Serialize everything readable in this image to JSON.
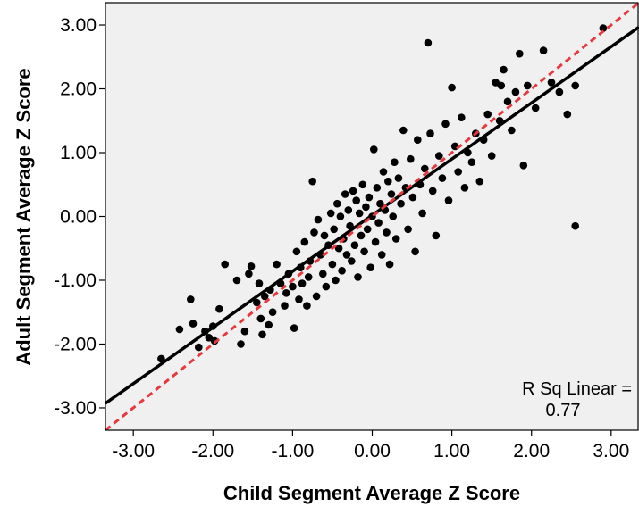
{
  "chart_data": {
    "type": "scatter",
    "title": "",
    "xlabel": "Child Segment Average Z Score",
    "ylabel": "Adult Segment Average Z Score",
    "xlim": [
      -3.35,
      3.35
    ],
    "ylim": [
      -3.35,
      3.35
    ],
    "x_ticks": [
      -3.0,
      -2.0,
      -1.0,
      0.0,
      1.0,
      2.0,
      3.0
    ],
    "y_ticks": [
      -3.0,
      -2.0,
      -1.0,
      0.0,
      1.0,
      2.0,
      3.0
    ],
    "x_tick_labels": [
      "-3.00",
      "-2.00",
      "-1.00",
      "0.00",
      "1.00",
      "2.00",
      "3.00"
    ],
    "y_tick_labels": [
      "-3.00",
      "-2.00",
      "-1.00",
      "0.00",
      "1.00",
      "2.00",
      "3.00"
    ],
    "grid": false,
    "annotation": {
      "line1": "R Sq Linear =",
      "line2": "0.77"
    },
    "fit_line": {
      "slope": 0.88,
      "intercept": 0.02,
      "color": "#000000"
    },
    "reference_line": {
      "slope": 1.0,
      "intercept": 0.0,
      "color": "#e8383d",
      "style": "dashed"
    },
    "plot_background": "#f0f0f0",
    "point_color": "#000000",
    "points": [
      [
        -2.65,
        -2.23
      ],
      [
        -2.42,
        -1.77
      ],
      [
        -2.28,
        -1.3
      ],
      [
        -2.25,
        -1.68
      ],
      [
        -2.18,
        -2.05
      ],
      [
        -2.1,
        -1.8
      ],
      [
        -2.05,
        -1.9
      ],
      [
        -2.0,
        -1.72
      ],
      [
        -1.98,
        -1.95
      ],
      [
        -1.92,
        -1.45
      ],
      [
        -1.85,
        -0.75
      ],
      [
        -1.7,
        -1.0
      ],
      [
        -1.65,
        -2.0
      ],
      [
        -1.6,
        -1.8
      ],
      [
        -1.55,
        -0.9
      ],
      [
        -1.52,
        -0.78
      ],
      [
        -1.45,
        -1.35
      ],
      [
        -1.42,
        -1.05
      ],
      [
        -1.4,
        -1.6
      ],
      [
        -1.38,
        -1.85
      ],
      [
        -1.35,
        -1.25
      ],
      [
        -1.3,
        -1.7
      ],
      [
        -1.28,
        -1.15
      ],
      [
        -1.25,
        -1.5
      ],
      [
        -1.2,
        -0.75
      ],
      [
        -1.15,
        -1.05
      ],
      [
        -1.1,
        -1.4
      ],
      [
        -1.08,
        -1.2
      ],
      [
        -1.05,
        -0.9
      ],
      [
        -1.0,
        -1.1
      ],
      [
        -0.98,
        -1.75
      ],
      [
        -0.95,
        -0.55
      ],
      [
        -0.92,
        -1.3
      ],
      [
        -0.9,
        -0.8
      ],
      [
        -0.88,
        -1.05
      ],
      [
        -0.85,
        -0.4
      ],
      [
        -0.82,
        -1.4
      ],
      [
        -0.8,
        -0.95
      ],
      [
        -0.78,
        -0.7
      ],
      [
        -0.75,
        0.55
      ],
      [
        -0.73,
        -0.25
      ],
      [
        -0.7,
        -1.25
      ],
      [
        -0.68,
        -0.05
      ],
      [
        -0.65,
        -0.6
      ],
      [
        -0.62,
        -0.9
      ],
      [
        -0.6,
        -0.3
      ],
      [
        -0.58,
        -1.1
      ],
      [
        -0.55,
        -0.45
      ],
      [
        -0.52,
        0.05
      ],
      [
        -0.5,
        -0.75
      ],
      [
        -0.48,
        -0.2
      ],
      [
        -0.46,
        -1.0
      ],
      [
        -0.44,
        0.2
      ],
      [
        -0.42,
        -0.5
      ],
      [
        -0.4,
        0.0
      ],
      [
        -0.38,
        -0.85
      ],
      [
        -0.36,
        -0.35
      ],
      [
        -0.34,
        0.35
      ],
      [
        -0.32,
        -0.6
      ],
      [
        -0.3,
        0.1
      ],
      [
        -0.28,
        -0.15
      ],
      [
        -0.26,
        -0.7
      ],
      [
        -0.24,
        0.4
      ],
      [
        -0.22,
        -0.45
      ],
      [
        -0.2,
        0.25
      ],
      [
        -0.18,
        -0.95
      ],
      [
        -0.16,
        0.05
      ],
      [
        -0.14,
        -0.3
      ],
      [
        -0.12,
        0.5
      ],
      [
        -0.1,
        -0.55
      ],
      [
        -0.08,
        0.15
      ],
      [
        -0.06,
        -0.2
      ],
      [
        -0.04,
        0.3
      ],
      [
        -0.02,
        -0.8
      ],
      [
        0.0,
        0.0
      ],
      [
        0.02,
        1.05
      ],
      [
        0.04,
        -0.4
      ],
      [
        0.06,
        0.45
      ],
      [
        0.08,
        -0.1
      ],
      [
        0.1,
        0.2
      ],
      [
        0.12,
        -0.6
      ],
      [
        0.14,
        0.7
      ],
      [
        0.16,
        0.1
      ],
      [
        0.18,
        -0.25
      ],
      [
        0.2,
        0.55
      ],
      [
        0.22,
        -0.75
      ],
      [
        0.24,
        0.35
      ],
      [
        0.26,
        0.0
      ],
      [
        0.28,
        0.85
      ],
      [
        0.3,
        -0.35
      ],
      [
        0.33,
        0.6
      ],
      [
        0.36,
        0.2
      ],
      [
        0.39,
        1.35
      ],
      [
        0.42,
        0.45
      ],
      [
        0.45,
        -0.2
      ],
      [
        0.48,
        0.9
      ],
      [
        0.51,
        0.3
      ],
      [
        0.54,
        -0.55
      ],
      [
        0.57,
        1.2
      ],
      [
        0.6,
        0.5
      ],
      [
        0.63,
        0.05
      ],
      [
        0.66,
        0.75
      ],
      [
        0.7,
        2.72
      ],
      [
        0.73,
        1.3
      ],
      [
        0.76,
        0.4
      ],
      [
        0.8,
        -0.3
      ],
      [
        0.84,
        0.95
      ],
      [
        0.88,
        0.6
      ],
      [
        0.92,
        1.45
      ],
      [
        0.96,
        0.25
      ],
      [
        1.0,
        2.02
      ],
      [
        1.04,
        1.1
      ],
      [
        1.08,
        0.7
      ],
      [
        1.12,
        1.55
      ],
      [
        1.16,
        0.45
      ],
      [
        1.2,
        1.0
      ],
      [
        1.25,
        0.85
      ],
      [
        1.3,
        1.3
      ],
      [
        1.35,
        0.55
      ],
      [
        1.4,
        1.2
      ],
      [
        1.45,
        1.6
      ],
      [
        1.5,
        0.95
      ],
      [
        1.55,
        2.1
      ],
      [
        1.6,
        1.5
      ],
      [
        1.65,
        2.3
      ],
      [
        1.7,
        1.8
      ],
      [
        1.75,
        1.35
      ],
      [
        1.8,
        1.95
      ],
      [
        1.85,
        2.55
      ],
      [
        1.9,
        0.8
      ],
      [
        1.95,
        2.05
      ],
      [
        2.05,
        1.7
      ],
      [
        2.15,
        2.6
      ],
      [
        2.25,
        2.1
      ],
      [
        2.35,
        1.95
      ],
      [
        2.45,
        1.6
      ],
      [
        2.55,
        2.05
      ],
      [
        2.55,
        -0.15
      ],
      [
        2.9,
        2.95
      ],
      [
        1.62,
        2.05
      ]
    ]
  }
}
